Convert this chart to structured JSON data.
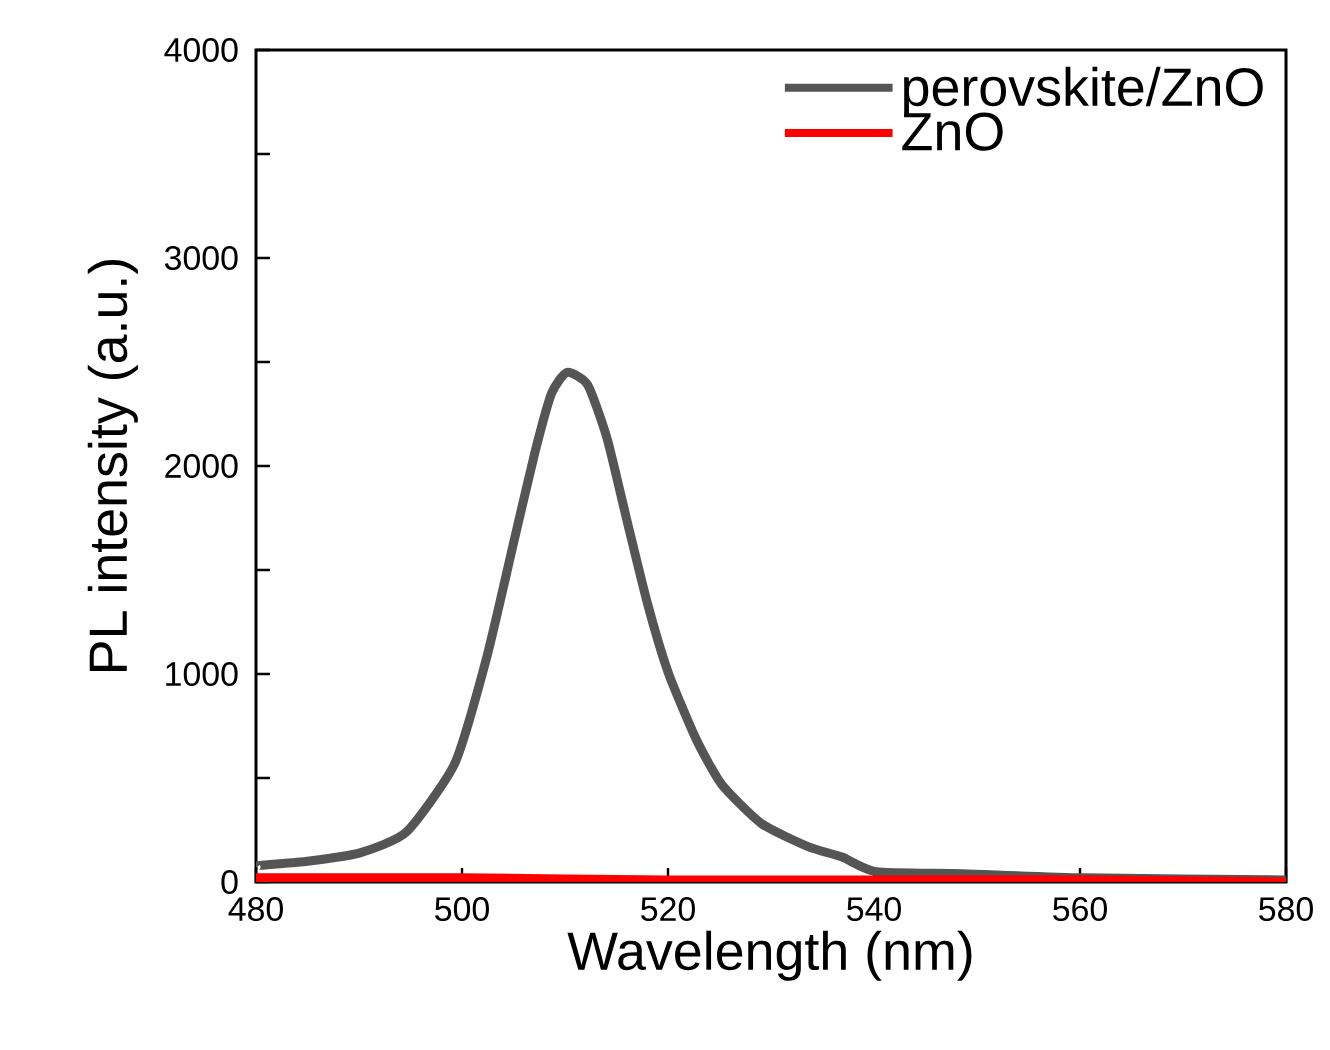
{
  "chart_data": {
    "type": "line",
    "xlabel": "Wavelength (nm)",
    "ylabel": "PL intensity (a.u.)",
    "xlim": [
      480,
      580
    ],
    "ylim": [
      0,
      4000
    ],
    "xticks": [
      480,
      500,
      520,
      540,
      560,
      580
    ],
    "yticks": [
      0,
      {
        "value": 500,
        "label": null
      },
      1000,
      {
        "value": 1500,
        "label": null
      },
      2000,
      {
        "value": 2500,
        "label": null
      },
      3000,
      {
        "value": 3500,
        "label": null
      },
      4000
    ],
    "legend": "top right",
    "grid": false,
    "marker": "none",
    "line_style": "solid",
    "series": [
      {
        "name": "perovskite/ZnO",
        "color": "#555555",
        "x": [
          480,
          480.4,
          485,
          490.1,
          494.6,
          499.3,
          502.4,
          505.1,
          507.1,
          508.7,
          510.2,
          512.2,
          514.1,
          516.1,
          518.0,
          520.0,
          522.7,
          525.2,
          529.1,
          533.6,
          536.9,
          540.2,
          548.6,
          560.3,
          580
        ],
        "values": [
          70,
          80,
          100,
          140,
          240,
          570,
          1080,
          1650,
          2070,
          2350,
          2450,
          2390,
          2130,
          1720,
          1340,
          1010,
          690,
          470,
          280,
          170,
          120,
          50,
          40,
          20,
          10
        ]
      },
      {
        "name": "ZnO",
        "color": "#ff0000",
        "x": [
          480,
          500,
          520,
          540,
          560,
          580
        ],
        "values": [
          20,
          20,
          10,
          10,
          10,
          0
        ]
      }
    ]
  }
}
